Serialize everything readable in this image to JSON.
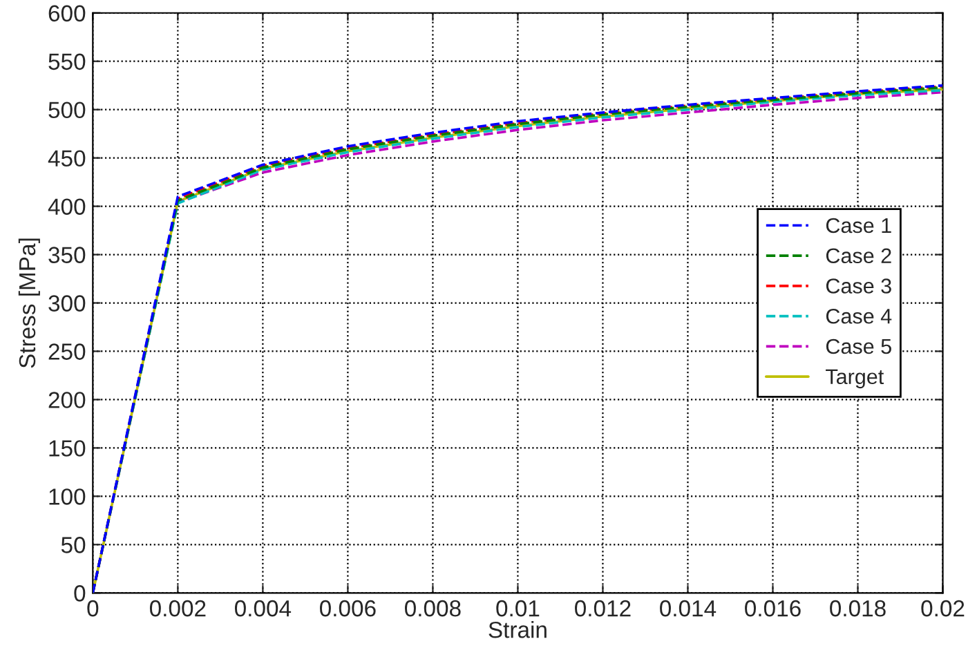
{
  "chart_data": {
    "type": "line",
    "xlabel": "Strain",
    "ylabel": "Stress [MPa]",
    "x": [
      0,
      0.002,
      0.004,
      0.006,
      0.008,
      0.01,
      0.012,
      0.014,
      0.016,
      0.018,
      0.02
    ],
    "series": [
      {
        "name": "Case 1",
        "color": "#0000ff",
        "line_style": "dashed",
        "values": [
          0,
          410,
          443,
          462,
          476,
          488,
          497,
          505,
          512,
          519,
          525
        ]
      },
      {
        "name": "Case 2",
        "color": "#008000",
        "line_style": "dashed",
        "values": [
          0,
          406,
          440,
          459,
          473,
          485,
          495,
          503,
          510,
          517,
          523
        ]
      },
      {
        "name": "Case 3",
        "color": "#ff0000",
        "line_style": "dashed",
        "values": [
          0,
          408,
          442,
          460,
          474,
          486,
          496,
          504,
          511,
          518,
          524
        ]
      },
      {
        "name": "Case 4",
        "color": "#00bfbf",
        "line_style": "dashed",
        "values": [
          0,
          403,
          438,
          456,
          470,
          482,
          492,
          500,
          508,
          515,
          520
        ]
      },
      {
        "name": "Case 5",
        "color": "#bf00bf",
        "line_style": "dashed",
        "values": [
          0,
          404,
          435,
          453,
          467,
          479,
          489,
          497,
          505,
          512,
          518
        ]
      },
      {
        "name": "Target",
        "color": "#bfbf00",
        "line_style": "solid",
        "values": [
          0,
          405,
          439,
          457,
          471,
          483,
          493,
          501,
          509,
          516,
          521
        ]
      }
    ],
    "xlim": [
      0,
      0.02
    ],
    "xticks": [
      0,
      0.002,
      0.004,
      0.006,
      0.008,
      0.01,
      0.012,
      0.014,
      0.016,
      0.018,
      0.02
    ],
    "ylim": [
      0,
      600
    ],
    "yticks": [
      0,
      50,
      100,
      150,
      200,
      250,
      300,
      350,
      400,
      450,
      500,
      550,
      600
    ],
    "grid": true,
    "legend": "right",
    "marker": "none"
  }
}
